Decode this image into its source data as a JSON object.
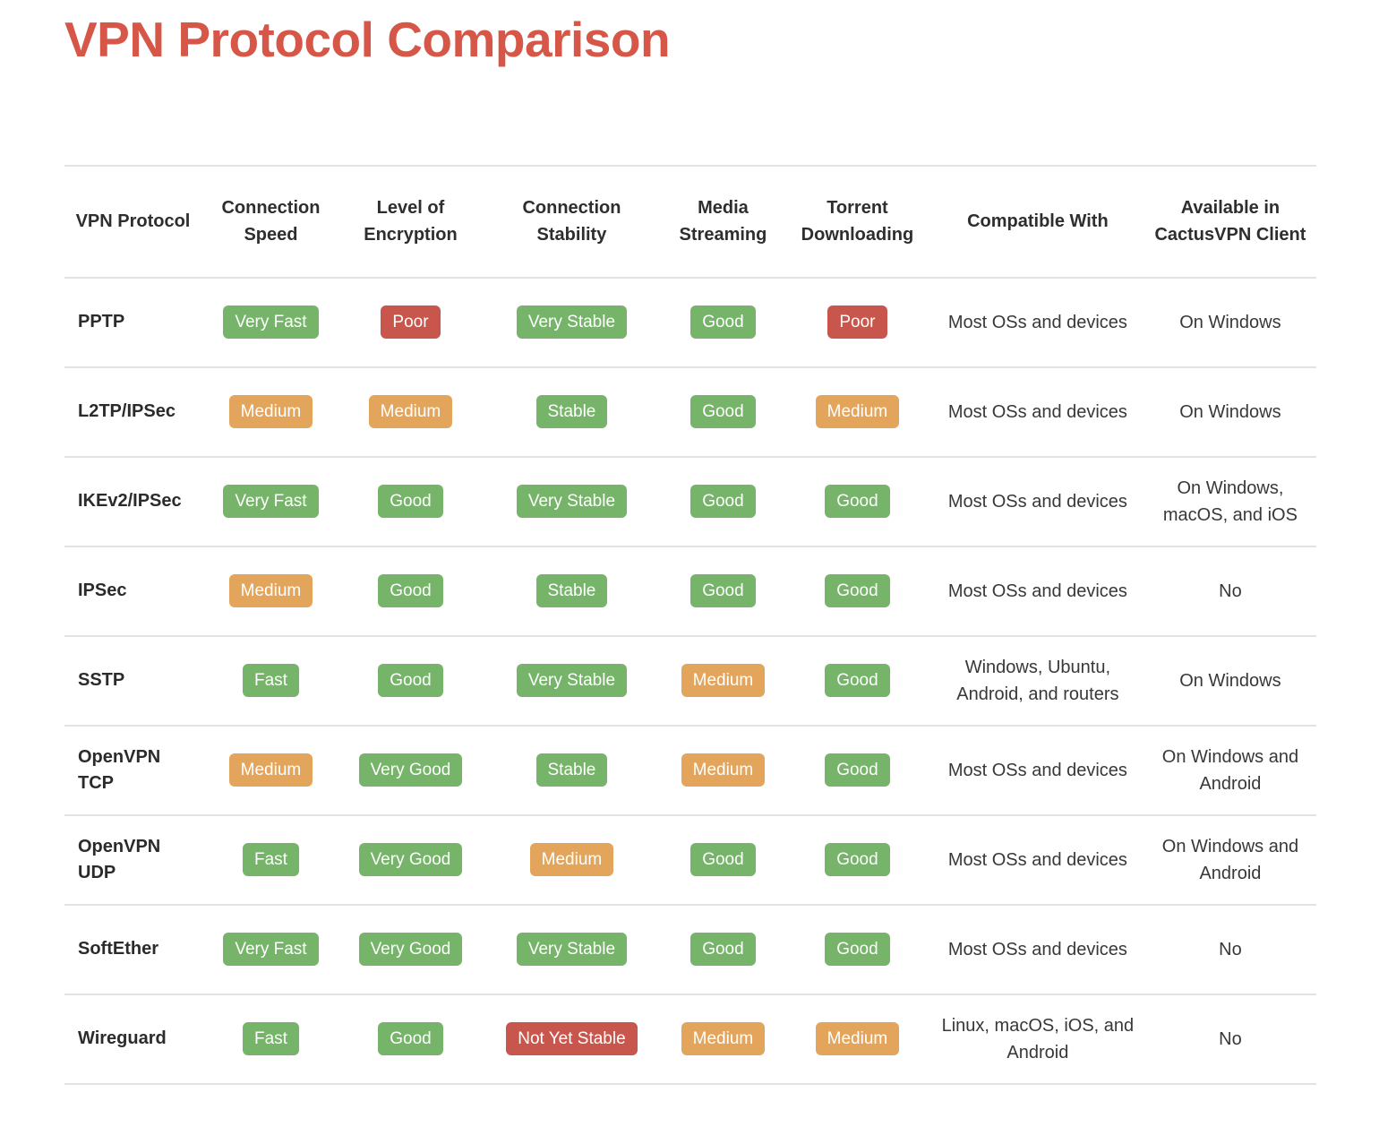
{
  "page": {
    "title": "VPN Protocol Comparison"
  },
  "colors": {
    "title": "#d65748",
    "green": "#75b469",
    "orange": "#e2a55b",
    "red": "#c9564c",
    "divider": "#e3e3e3"
  },
  "table": {
    "columns": [
      {
        "key": "protocol",
        "label": "VPN Protocol"
      },
      {
        "key": "connection_speed",
        "label": "Connection Speed"
      },
      {
        "key": "level_of_encryption",
        "label": "Level of Encryption"
      },
      {
        "key": "connection_stability",
        "label": "Connection Stability"
      },
      {
        "key": "media_streaming",
        "label": "Media Streaming"
      },
      {
        "key": "torrent_downloading",
        "label": "Torrent Downloading"
      },
      {
        "key": "compatible_with",
        "label": "Compatible With"
      },
      {
        "key": "available_in_cactusvpn_client",
        "label": "Available in CactusVPN Client"
      }
    ],
    "column_widths_pct": [
      10.94,
      11.09,
      11.23,
      14.52,
      9.66,
      11.8,
      17.02,
      13.74
    ],
    "rows": [
      {
        "protocol": "PPTP",
        "connection_speed": {
          "label": "Very Fast",
          "color": "green"
        },
        "level_of_encryption": {
          "label": "Poor",
          "color": "red"
        },
        "connection_stability": {
          "label": "Very Stable",
          "color": "green"
        },
        "media_streaming": {
          "label": "Good",
          "color": "green"
        },
        "torrent_downloading": {
          "label": "Poor",
          "color": "red"
        },
        "compatible_with": "Most OSs and devices",
        "available_in_cactusvpn_client": "On Windows"
      },
      {
        "protocol": "L2TP/IPSec",
        "connection_speed": {
          "label": "Medium",
          "color": "orange"
        },
        "level_of_encryption": {
          "label": "Medium",
          "color": "orange"
        },
        "connection_stability": {
          "label": "Stable",
          "color": "green"
        },
        "media_streaming": {
          "label": "Good",
          "color": "green"
        },
        "torrent_downloading": {
          "label": "Medium",
          "color": "orange"
        },
        "compatible_with": "Most OSs and devices",
        "available_in_cactusvpn_client": "On Windows"
      },
      {
        "protocol": "IKEv2/IPSec",
        "connection_speed": {
          "label": "Very Fast",
          "color": "green"
        },
        "level_of_encryption": {
          "label": "Good",
          "color": "green"
        },
        "connection_stability": {
          "label": "Very Stable",
          "color": "green"
        },
        "media_streaming": {
          "label": "Good",
          "color": "green"
        },
        "torrent_downloading": {
          "label": "Good",
          "color": "green"
        },
        "compatible_with": "Most OSs and devices",
        "available_in_cactusvpn_client": "On Windows, macOS, and iOS"
      },
      {
        "protocol": "IPSec",
        "connection_speed": {
          "label": "Medium",
          "color": "orange"
        },
        "level_of_encryption": {
          "label": "Good",
          "color": "green"
        },
        "connection_stability": {
          "label": "Stable",
          "color": "green"
        },
        "media_streaming": {
          "label": "Good",
          "color": "green"
        },
        "torrent_downloading": {
          "label": "Good",
          "color": "green"
        },
        "compatible_with": "Most OSs and devices",
        "available_in_cactusvpn_client": "No"
      },
      {
        "protocol": "SSTP",
        "connection_speed": {
          "label": "Fast",
          "color": "green"
        },
        "level_of_encryption": {
          "label": "Good",
          "color": "green"
        },
        "connection_stability": {
          "label": "Very Stable",
          "color": "green"
        },
        "media_streaming": {
          "label": "Medium",
          "color": "orange"
        },
        "torrent_downloading": {
          "label": "Good",
          "color": "green"
        },
        "compatible_with": "Windows, Ubuntu, Android, and routers",
        "available_in_cactusvpn_client": "On Windows"
      },
      {
        "protocol": "OpenVPN TCP",
        "connection_speed": {
          "label": "Medium",
          "color": "orange"
        },
        "level_of_encryption": {
          "label": "Very Good",
          "color": "green"
        },
        "connection_stability": {
          "label": "Stable",
          "color": "green"
        },
        "media_streaming": {
          "label": "Medium",
          "color": "orange"
        },
        "torrent_downloading": {
          "label": "Good",
          "color": "green"
        },
        "compatible_with": "Most OSs and devices",
        "available_in_cactusvpn_client": "On Windows and Android"
      },
      {
        "protocol": "OpenVPN UDP",
        "connection_speed": {
          "label": "Fast",
          "color": "green"
        },
        "level_of_encryption": {
          "label": "Very Good",
          "color": "green"
        },
        "connection_stability": {
          "label": "Medium",
          "color": "orange"
        },
        "media_streaming": {
          "label": "Good",
          "color": "green"
        },
        "torrent_downloading": {
          "label": "Good",
          "color": "green"
        },
        "compatible_with": "Most OSs and devices",
        "available_in_cactusvpn_client": "On Windows and Android"
      },
      {
        "protocol": "SoftEther",
        "connection_speed": {
          "label": "Very Fast",
          "color": "green"
        },
        "level_of_encryption": {
          "label": "Very Good",
          "color": "green"
        },
        "connection_stability": {
          "label": "Very Stable",
          "color": "green"
        },
        "media_streaming": {
          "label": "Good",
          "color": "green"
        },
        "torrent_downloading": {
          "label": "Good",
          "color": "green"
        },
        "compatible_with": "Most OSs and devices",
        "available_in_cactusvpn_client": "No"
      },
      {
        "protocol": "Wireguard",
        "connection_speed": {
          "label": "Fast",
          "color": "green"
        },
        "level_of_encryption": {
          "label": "Good",
          "color": "green"
        },
        "connection_stability": {
          "label": "Not Yet Stable",
          "color": "red"
        },
        "media_streaming": {
          "label": "Medium",
          "color": "orange"
        },
        "torrent_downloading": {
          "label": "Medium",
          "color": "orange"
        },
        "compatible_with": "Linux, macOS, iOS, and Android",
        "available_in_cactusvpn_client": "No"
      }
    ]
  }
}
